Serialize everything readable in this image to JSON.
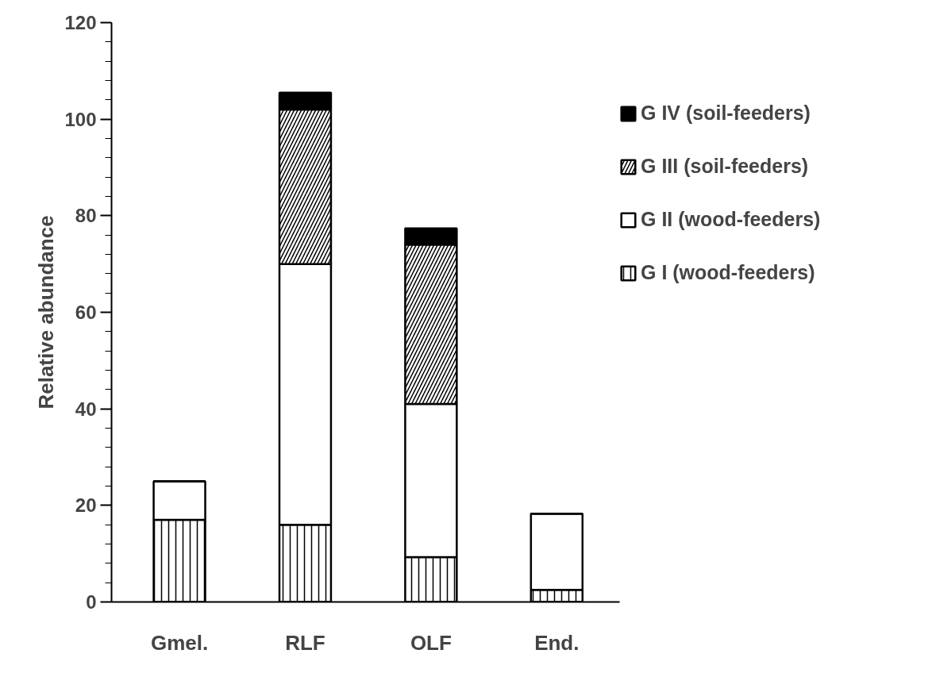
{
  "chart_data": {
    "type": "bar",
    "stacked": true,
    "ylabel": "Relative abundance",
    "categories": [
      "Gmel.",
      "RLF",
      "OLF",
      "End."
    ],
    "series": [
      {
        "name": "G I (wood-feeders)",
        "color": "#ffffff",
        "values": [
          17,
          16,
          9.3,
          2.5
        ]
      },
      {
        "name": "G II (wood-feeders)",
        "color": "#ffffff",
        "values": [
          8,
          54,
          31.7,
          15.8
        ]
      },
      {
        "name": "G III (soil-feeders)",
        "color": "#ffffff",
        "values": [
          0,
          32,
          33,
          0
        ]
      },
      {
        "name": "G IV (soil-feeders)",
        "color": "#000000",
        "values": [
          0,
          3.5,
          3.4,
          0
        ]
      }
    ],
    "ylim": [
      0,
      120
    ],
    "yticks": [
      0,
      20,
      40,
      60,
      80,
      100,
      120
    ],
    "grid": false,
    "legend": "right"
  }
}
